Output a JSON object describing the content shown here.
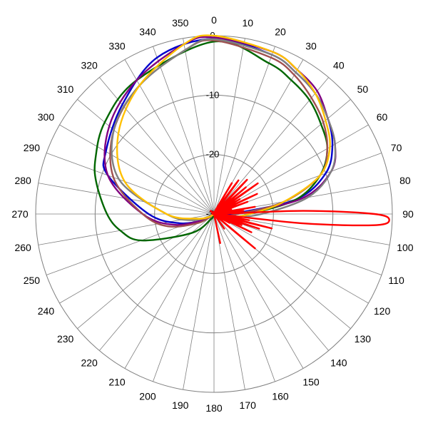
{
  "chart_data": {
    "type": "polar-line",
    "title": "",
    "angular_axis": {
      "direction": "clockwise",
      "zero_at": "top",
      "tick_labels": [
        "0",
        "10",
        "20",
        "30",
        "40",
        "50",
        "60",
        "70",
        "80",
        "90",
        "100",
        "110",
        "120",
        "130",
        "140",
        "150",
        "160",
        "170",
        "180",
        "190",
        "200",
        "210",
        "220",
        "230",
        "240",
        "250",
        "260",
        "270",
        "280",
        "290",
        "300",
        "310",
        "320",
        "330",
        "340",
        "350"
      ]
    },
    "radial_axis": {
      "range": [
        -30,
        0
      ],
      "tick_values": [
        0,
        -10,
        -20,
        -30
      ],
      "tick_labels": [
        "0",
        "-10",
        "-20",
        "-30"
      ]
    },
    "grid": true,
    "legend": "none",
    "series": [
      {
        "color": "#0000cc",
        "theta": [
          0,
          20,
          30,
          40,
          50,
          60,
          70,
          80,
          90,
          100,
          110,
          120,
          150,
          180,
          210,
          240,
          255,
          270,
          290,
          300,
          320,
          340
        ],
        "r": [
          -0.5,
          -1.5,
          -2.5,
          -3.5,
          -5,
          -7,
          -10,
          -16,
          -27,
          -28,
          -29,
          -30,
          -30,
          -30,
          -30,
          -28,
          -24,
          -19,
          -11,
          -9,
          -6,
          -2
        ]
      },
      {
        "color": "#006600",
        "theta": [
          0,
          20,
          30,
          40,
          50,
          60,
          70,
          80,
          90,
          100,
          110,
          150,
          180,
          210,
          230,
          250,
          260,
          270,
          285,
          295,
          310,
          330
        ],
        "r": [
          -1,
          -3,
          -4,
          -5,
          -6.5,
          -8,
          -11,
          -16,
          -24,
          -27,
          -29,
          -30,
          -30,
          -29,
          -25,
          -17,
          -14,
          -12,
          -9.5,
          -8,
          -6,
          -4
        ]
      },
      {
        "color": "#800080",
        "theta": [
          0,
          20,
          30,
          40,
          50,
          60,
          70,
          80,
          90,
          100,
          110,
          150,
          180,
          210,
          240,
          255,
          270,
          290,
          310,
          330,
          350
        ],
        "r": [
          -0.3,
          -1,
          -2,
          -3,
          -5,
          -6.5,
          -9,
          -15,
          -26,
          -28,
          -29,
          -30,
          -30,
          -30,
          -28,
          -23,
          -18,
          -11,
          -7,
          -4,
          -1
        ]
      },
      {
        "color": "#a05050",
        "theta": [
          0,
          20,
          30,
          40,
          50,
          60,
          70,
          80,
          90,
          100,
          110,
          150,
          180,
          210,
          240,
          255,
          270,
          290,
          310,
          330,
          350
        ],
        "r": [
          -0.8,
          -2,
          -3,
          -4.5,
          -6,
          -8,
          -11,
          -18,
          -26,
          -28,
          -29,
          -30,
          -30,
          -30,
          -27,
          -22,
          -18,
          -12,
          -8,
          -5,
          -2
        ]
      },
      {
        "color": "#808080",
        "theta": [
          0,
          20,
          30,
          40,
          50,
          60,
          70,
          80,
          90,
          100,
          110,
          150,
          180,
          210,
          240,
          255,
          270,
          290,
          310,
          330,
          350
        ],
        "r": [
          -0.6,
          -1.5,
          -2.5,
          -3.5,
          -5,
          -6.5,
          -9,
          -14,
          -22,
          -27,
          -29,
          -30,
          -30,
          -30,
          -29,
          -26,
          -22,
          -13,
          -8,
          -5,
          -2
        ]
      },
      {
        "color": "#ffc000",
        "theta": [
          0,
          20,
          30,
          40,
          50,
          60,
          70,
          80,
          90,
          100,
          110,
          150,
          180,
          210,
          240,
          255,
          270,
          290,
          310,
          330,
          350
        ],
        "r": [
          0,
          -1,
          -2,
          -3.5,
          -5.5,
          -7.5,
          -11,
          -18,
          -24,
          -27,
          -29,
          -30,
          -30,
          -30,
          -29,
          -27,
          -22,
          -14,
          -9,
          -5,
          -1
        ]
      },
      {
        "color": "#ff0000",
        "theta": [
          0,
          10,
          20,
          25,
          30,
          33,
          36,
          40,
          44,
          48,
          50,
          52,
          55,
          58,
          60,
          62,
          65,
          68,
          70,
          72,
          75,
          78,
          80,
          82,
          84,
          86,
          88,
          90,
          92,
          94,
          96,
          98,
          100,
          102,
          104,
          106,
          108,
          110,
          112,
          114,
          116,
          118,
          120,
          125,
          130,
          135,
          140,
          145,
          150,
          155,
          160,
          165,
          168,
          170,
          175,
          180,
          190,
          200,
          210,
          220,
          230,
          240,
          250,
          260,
          270,
          280,
          290,
          300,
          310,
          320,
          330,
          340,
          350
        ],
        "r": [
          -30,
          -30,
          -30,
          -29,
          -24,
          -30,
          -23,
          -30,
          -22,
          -30,
          -23,
          -30,
          -21,
          -30,
          -25,
          -30,
          -22,
          -30,
          -24,
          -30,
          -27,
          -30,
          -23,
          -30,
          -25,
          -30,
          -15,
          -3,
          -0.5,
          -3,
          -15,
          -30,
          -24,
          -30,
          -20,
          -30,
          -22,
          -30,
          -25,
          -30,
          -23,
          -30,
          -27,
          -30,
          -21,
          -30,
          -30,
          -27,
          -30,
          -30,
          -30,
          -30,
          -25,
          -30,
          -30,
          -30,
          -30,
          -30,
          -30,
          -30,
          -30,
          -30,
          -30,
          -30,
          -30,
          -30,
          -30,
          -30,
          -30,
          -30,
          -30,
          -30,
          -30
        ]
      }
    ]
  }
}
